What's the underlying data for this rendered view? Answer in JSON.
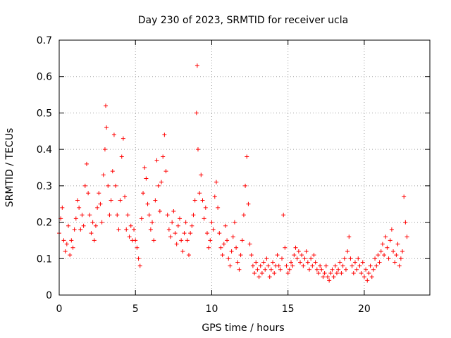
{
  "chart_data": {
    "type": "scatter",
    "title": "Day 230 of 2023, SRMTID for receiver ucla",
    "xlabel": "GPS time / hours",
    "ylabel": "SRMTID / TECUs",
    "xlim": [
      0,
      24.3
    ],
    "ylim": [
      0,
      0.7
    ],
    "x_ticks": [
      0,
      5,
      10,
      15,
      20
    ],
    "x_tick_labels": [
      "0",
      "5",
      "10",
      "15",
      "20"
    ],
    "y_ticks": [
      0,
      0.1,
      0.2,
      0.3,
      0.4,
      0.5,
      0.6,
      0.7
    ],
    "y_tick_labels": [
      "0",
      "0.1",
      "0.2",
      "0.3",
      "0.4",
      "0.5",
      "0.6",
      "0.7"
    ],
    "grid": true,
    "marker": "+",
    "color": "#ff0000",
    "series": [
      {
        "name": "SRMTID",
        "points": [
          [
            0.0,
            0.17
          ],
          [
            0.1,
            0.21
          ],
          [
            0.2,
            0.24
          ],
          [
            0.3,
            0.15
          ],
          [
            0.4,
            0.12
          ],
          [
            0.5,
            0.14
          ],
          [
            0.6,
            0.19
          ],
          [
            0.7,
            0.11
          ],
          [
            0.8,
            0.15
          ],
          [
            0.9,
            0.13
          ],
          [
            1.0,
            0.18
          ],
          [
            1.1,
            0.21
          ],
          [
            1.2,
            0.26
          ],
          [
            1.3,
            0.24
          ],
          [
            1.4,
            0.18
          ],
          [
            1.5,
            0.22
          ],
          [
            1.6,
            0.19
          ],
          [
            1.7,
            0.3
          ],
          [
            1.8,
            0.36
          ],
          [
            1.9,
            0.28
          ],
          [
            2.0,
            0.22
          ],
          [
            2.1,
            0.17
          ],
          [
            2.2,
            0.2
          ],
          [
            2.3,
            0.15
          ],
          [
            2.4,
            0.19
          ],
          [
            2.5,
            0.24
          ],
          [
            2.6,
            0.28
          ],
          [
            2.7,
            0.25
          ],
          [
            2.8,
            0.2
          ],
          [
            2.9,
            0.33
          ],
          [
            3.0,
            0.4
          ],
          [
            3.05,
            0.52
          ],
          [
            3.1,
            0.46
          ],
          [
            3.2,
            0.3
          ],
          [
            3.3,
            0.22
          ],
          [
            3.4,
            0.26
          ],
          [
            3.5,
            0.34
          ],
          [
            3.6,
            0.44
          ],
          [
            3.7,
            0.3
          ],
          [
            3.8,
            0.22
          ],
          [
            3.9,
            0.18
          ],
          [
            4.0,
            0.26
          ],
          [
            4.1,
            0.38
          ],
          [
            4.2,
            0.43
          ],
          [
            4.3,
            0.27
          ],
          [
            4.4,
            0.18
          ],
          [
            4.5,
            0.22
          ],
          [
            4.6,
            0.16
          ],
          [
            4.7,
            0.19
          ],
          [
            4.8,
            0.15
          ],
          [
            4.9,
            0.18
          ],
          [
            5.0,
            0.15
          ],
          [
            5.1,
            0.13
          ],
          [
            5.2,
            0.1
          ],
          [
            5.3,
            0.08
          ],
          [
            5.4,
            0.21
          ],
          [
            5.5,
            0.28
          ],
          [
            5.6,
            0.35
          ],
          [
            5.7,
            0.32
          ],
          [
            5.8,
            0.25
          ],
          [
            5.9,
            0.22
          ],
          [
            6.0,
            0.18
          ],
          [
            6.1,
            0.2
          ],
          [
            6.2,
            0.15
          ],
          [
            6.3,
            0.26
          ],
          [
            6.4,
            0.37
          ],
          [
            6.5,
            0.3
          ],
          [
            6.6,
            0.23
          ],
          [
            6.7,
            0.31
          ],
          [
            6.8,
            0.38
          ],
          [
            6.9,
            0.44
          ],
          [
            7.0,
            0.34
          ],
          [
            7.1,
            0.22
          ],
          [
            7.2,
            0.18
          ],
          [
            7.3,
            0.16
          ],
          [
            7.4,
            0.2
          ],
          [
            7.5,
            0.23
          ],
          [
            7.6,
            0.17
          ],
          [
            7.7,
            0.14
          ],
          [
            7.8,
            0.19
          ],
          [
            7.9,
            0.21
          ],
          [
            8.0,
            0.15
          ],
          [
            8.1,
            0.12
          ],
          [
            8.2,
            0.17
          ],
          [
            8.3,
            0.2
          ],
          [
            8.4,
            0.15
          ],
          [
            8.5,
            0.11
          ],
          [
            8.6,
            0.17
          ],
          [
            8.7,
            0.19
          ],
          [
            8.8,
            0.22
          ],
          [
            8.9,
            0.26
          ],
          [
            9.0,
            0.5
          ],
          [
            9.05,
            0.63
          ],
          [
            9.1,
            0.4
          ],
          [
            9.2,
            0.28
          ],
          [
            9.3,
            0.33
          ],
          [
            9.4,
            0.26
          ],
          [
            9.5,
            0.21
          ],
          [
            9.6,
            0.24
          ],
          [
            9.7,
            0.17
          ],
          [
            9.8,
            0.13
          ],
          [
            9.9,
            0.15
          ],
          [
            10.0,
            0.2
          ],
          [
            10.1,
            0.18
          ],
          [
            10.2,
            0.27
          ],
          [
            10.3,
            0.31
          ],
          [
            10.4,
            0.24
          ],
          [
            10.5,
            0.17
          ],
          [
            10.6,
            0.13
          ],
          [
            10.7,
            0.11
          ],
          [
            10.8,
            0.14
          ],
          [
            10.9,
            0.19
          ],
          [
            11.0,
            0.15
          ],
          [
            11.1,
            0.1
          ],
          [
            11.2,
            0.08
          ],
          [
            11.3,
            0.12
          ],
          [
            11.4,
            0.16
          ],
          [
            11.5,
            0.2
          ],
          [
            11.6,
            0.13
          ],
          [
            11.7,
            0.09
          ],
          [
            11.8,
            0.07
          ],
          [
            11.9,
            0.11
          ],
          [
            12.0,
            0.15
          ],
          [
            12.1,
            0.22
          ],
          [
            12.2,
            0.3
          ],
          [
            12.3,
            0.38
          ],
          [
            12.4,
            0.25
          ],
          [
            12.5,
            0.14
          ],
          [
            12.6,
            0.11
          ],
          [
            12.7,
            0.08
          ],
          [
            12.8,
            0.06
          ],
          [
            12.9,
            0.09
          ],
          [
            13.0,
            0.07
          ],
          [
            13.1,
            0.05
          ],
          [
            13.2,
            0.08
          ],
          [
            13.3,
            0.06
          ],
          [
            13.4,
            0.09
          ],
          [
            13.5,
            0.07
          ],
          [
            13.6,
            0.1
          ],
          [
            13.7,
            0.08
          ],
          [
            13.8,
            0.05
          ],
          [
            13.9,
            0.07
          ],
          [
            14.0,
            0.09
          ],
          [
            14.1,
            0.06
          ],
          [
            14.2,
            0.08
          ],
          [
            14.3,
            0.11
          ],
          [
            14.4,
            0.08
          ],
          [
            14.5,
            0.07
          ],
          [
            14.6,
            0.1
          ],
          [
            14.7,
            0.22
          ],
          [
            14.8,
            0.13
          ],
          [
            14.9,
            0.08
          ],
          [
            15.0,
            0.06
          ],
          [
            15.1,
            0.07
          ],
          [
            15.2,
            0.09
          ],
          [
            15.3,
            0.08
          ],
          [
            15.4,
            0.11
          ],
          [
            15.5,
            0.13
          ],
          [
            15.6,
            0.1
          ],
          [
            15.7,
            0.12
          ],
          [
            15.8,
            0.09
          ],
          [
            15.9,
            0.11
          ],
          [
            16.0,
            0.08
          ],
          [
            16.1,
            0.1
          ],
          [
            16.2,
            0.12
          ],
          [
            16.3,
            0.09
          ],
          [
            16.4,
            0.07
          ],
          [
            16.5,
            0.1
          ],
          [
            16.6,
            0.08
          ],
          [
            16.7,
            0.11
          ],
          [
            16.8,
            0.09
          ],
          [
            16.9,
            0.07
          ],
          [
            17.0,
            0.06
          ],
          [
            17.1,
            0.08
          ],
          [
            17.2,
            0.07
          ],
          [
            17.3,
            0.05
          ],
          [
            17.4,
            0.06
          ],
          [
            17.5,
            0.08
          ],
          [
            17.6,
            0.05
          ],
          [
            17.7,
            0.04
          ],
          [
            17.8,
            0.06
          ],
          [
            17.9,
            0.07
          ],
          [
            18.0,
            0.05
          ],
          [
            18.1,
            0.08
          ],
          [
            18.2,
            0.06
          ],
          [
            18.3,
            0.07
          ],
          [
            18.4,
            0.09
          ],
          [
            18.5,
            0.06
          ],
          [
            18.6,
            0.08
          ],
          [
            18.7,
            0.1
          ],
          [
            18.8,
            0.07
          ],
          [
            18.9,
            0.12
          ],
          [
            19.0,
            0.16
          ],
          [
            19.1,
            0.1
          ],
          [
            19.2,
            0.08
          ],
          [
            19.3,
            0.06
          ],
          [
            19.4,
            0.09
          ],
          [
            19.5,
            0.07
          ],
          [
            19.6,
            0.1
          ],
          [
            19.7,
            0.08
          ],
          [
            19.8,
            0.06
          ],
          [
            19.9,
            0.09
          ],
          [
            20.0,
            0.05
          ],
          [
            20.1,
            0.07
          ],
          [
            20.2,
            0.04
          ],
          [
            20.3,
            0.06
          ],
          [
            20.4,
            0.08
          ],
          [
            20.5,
            0.05
          ],
          [
            20.6,
            0.07
          ],
          [
            20.7,
            0.1
          ],
          [
            20.8,
            0.08
          ],
          [
            20.9,
            0.11
          ],
          [
            21.0,
            0.09
          ],
          [
            21.1,
            0.12
          ],
          [
            21.2,
            0.14
          ],
          [
            21.3,
            0.11
          ],
          [
            21.4,
            0.16
          ],
          [
            21.5,
            0.13
          ],
          [
            21.6,
            0.1
          ],
          [
            21.7,
            0.15
          ],
          [
            21.8,
            0.18
          ],
          [
            21.9,
            0.12
          ],
          [
            22.0,
            0.09
          ],
          [
            22.1,
            0.11
          ],
          [
            22.2,
            0.14
          ],
          [
            22.3,
            0.08
          ],
          [
            22.4,
            0.1
          ],
          [
            22.5,
            0.12
          ],
          [
            22.6,
            0.27
          ],
          [
            22.7,
            0.2
          ],
          [
            22.8,
            0.16
          ]
        ]
      }
    ]
  }
}
